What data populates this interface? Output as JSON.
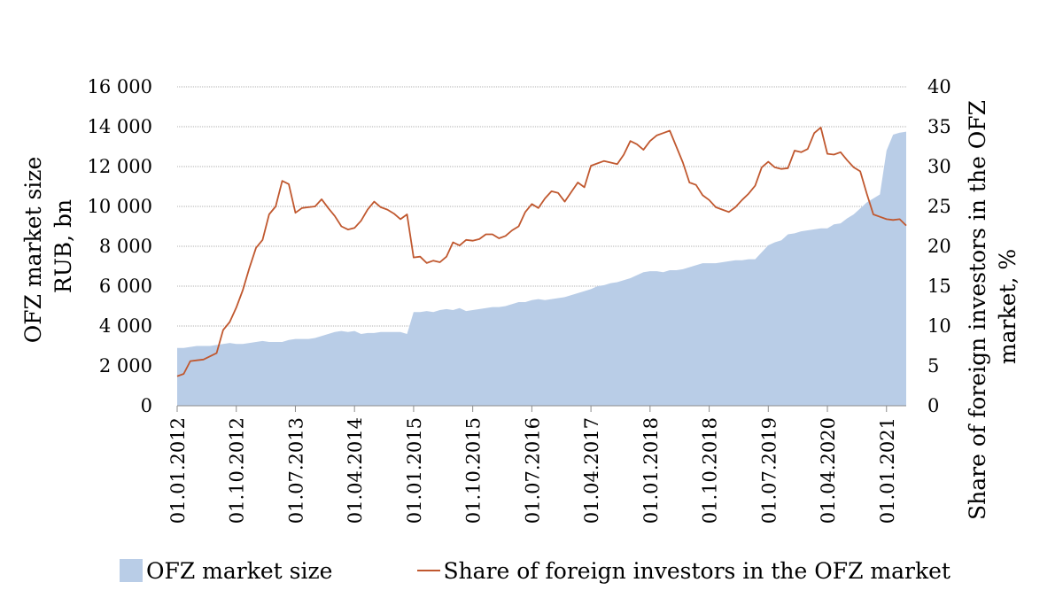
{
  "chart_data": {
    "type": "area+line",
    "x_ticks": [
      "01.01.2012",
      "01.10.2012",
      "01.07.2013",
      "01.04.2014",
      "01.01.2015",
      "01.10.2015",
      "01.07.2016",
      "01.04.2017",
      "01.01.2018",
      "01.10.2018",
      "01.07.2019",
      "01.04.2020",
      "01.01.2021"
    ],
    "y_left": {
      "label_lines": [
        "OFZ market size",
        "RUB, bn"
      ],
      "ticks": [
        "0",
        "2 000",
        "4 000",
        "6 000",
        "8 000",
        "10 000",
        "12 000",
        "14 000",
        "16 000"
      ],
      "min": 0,
      "max": 16000
    },
    "y_right": {
      "label_lines": [
        "Share of foreign investors in the OFZ",
        "market, %"
      ],
      "ticks": [
        "0",
        "5",
        "10",
        "15",
        "20",
        "25",
        "30",
        "35",
        "40"
      ],
      "min": 0,
      "max": 40
    },
    "x_range": [
      "2012-01",
      "2021-04"
    ],
    "grid": "horizontal",
    "legend_position": "bottom",
    "series": [
      {
        "name": "OFZ market size",
        "kind": "area",
        "axis": "left",
        "color": "#b9cde7",
        "points": [
          [
            "2012-01",
            2900
          ],
          [
            "2012-02",
            2900
          ],
          [
            "2012-03",
            2950
          ],
          [
            "2012-04",
            3000
          ],
          [
            "2012-05",
            3000
          ],
          [
            "2012-06",
            3000
          ],
          [
            "2012-07",
            3050
          ],
          [
            "2012-08",
            3100
          ],
          [
            "2012-09",
            3150
          ],
          [
            "2012-10",
            3100
          ],
          [
            "2012-11",
            3100
          ],
          [
            "2012-12",
            3150
          ],
          [
            "2013-01",
            3200
          ],
          [
            "2013-02",
            3250
          ],
          [
            "2013-03",
            3200
          ],
          [
            "2013-04",
            3200
          ],
          [
            "2013-05",
            3200
          ],
          [
            "2013-06",
            3300
          ],
          [
            "2013-07",
            3350
          ],
          [
            "2013-08",
            3350
          ],
          [
            "2013-09",
            3350
          ],
          [
            "2013-10",
            3400
          ],
          [
            "2013-11",
            3500
          ],
          [
            "2013-12",
            3600
          ],
          [
            "2014-01",
            3700
          ],
          [
            "2014-02",
            3750
          ],
          [
            "2014-03",
            3700
          ],
          [
            "2014-04",
            3750
          ],
          [
            "2014-05",
            3600
          ],
          [
            "2014-06",
            3650
          ],
          [
            "2014-07",
            3650
          ],
          [
            "2014-08",
            3700
          ],
          [
            "2014-09",
            3700
          ],
          [
            "2014-10",
            3700
          ],
          [
            "2014-11",
            3700
          ],
          [
            "2014-12",
            3600
          ],
          [
            "2015-01",
            4700
          ],
          [
            "2015-02",
            4700
          ],
          [
            "2015-03",
            4750
          ],
          [
            "2015-04",
            4700
          ],
          [
            "2015-05",
            4800
          ],
          [
            "2015-06",
            4850
          ],
          [
            "2015-07",
            4800
          ],
          [
            "2015-08",
            4900
          ],
          [
            "2015-09",
            4750
          ],
          [
            "2015-10",
            4800
          ],
          [
            "2015-11",
            4850
          ],
          [
            "2015-12",
            4900
          ],
          [
            "2016-01",
            4950
          ],
          [
            "2016-02",
            4950
          ],
          [
            "2016-03",
            5000
          ],
          [
            "2016-04",
            5100
          ],
          [
            "2016-05",
            5200
          ],
          [
            "2016-06",
            5200
          ],
          [
            "2016-07",
            5300
          ],
          [
            "2016-08",
            5350
          ],
          [
            "2016-09",
            5300
          ],
          [
            "2016-10",
            5350
          ],
          [
            "2016-11",
            5400
          ],
          [
            "2016-12",
            5450
          ],
          [
            "2017-01",
            5550
          ],
          [
            "2017-02",
            5650
          ],
          [
            "2017-03",
            5750
          ],
          [
            "2017-04",
            5850
          ],
          [
            "2017-05",
            6000
          ],
          [
            "2017-06",
            6050
          ],
          [
            "2017-07",
            6150
          ],
          [
            "2017-08",
            6200
          ],
          [
            "2017-09",
            6300
          ],
          [
            "2017-10",
            6400
          ],
          [
            "2017-11",
            6550
          ],
          [
            "2017-12",
            6700
          ],
          [
            "2018-01",
            6750
          ],
          [
            "2018-02",
            6750
          ],
          [
            "2018-03",
            6700
          ],
          [
            "2018-04",
            6800
          ],
          [
            "2018-05",
            6800
          ],
          [
            "2018-06",
            6850
          ],
          [
            "2018-07",
            6950
          ],
          [
            "2018-08",
            7050
          ],
          [
            "2018-09",
            7150
          ],
          [
            "2018-10",
            7150
          ],
          [
            "2018-11",
            7150
          ],
          [
            "2018-12",
            7200
          ],
          [
            "2019-01",
            7250
          ],
          [
            "2019-02",
            7300
          ],
          [
            "2019-03",
            7300
          ],
          [
            "2019-04",
            7350
          ],
          [
            "2019-05",
            7350
          ],
          [
            "2019-06",
            7700
          ],
          [
            "2019-07",
            8050
          ],
          [
            "2019-08",
            8200
          ],
          [
            "2019-09",
            8300
          ],
          [
            "2019-10",
            8600
          ],
          [
            "2019-11",
            8650
          ],
          [
            "2019-12",
            8750
          ],
          [
            "2020-01",
            8800
          ],
          [
            "2020-02",
            8850
          ],
          [
            "2020-03",
            8900
          ],
          [
            "2020-04",
            8900
          ],
          [
            "2020-05",
            9100
          ],
          [
            "2020-06",
            9150
          ],
          [
            "2020-07",
            9400
          ],
          [
            "2020-08",
            9600
          ],
          [
            "2020-09",
            9900
          ],
          [
            "2020-10",
            10200
          ],
          [
            "2020-11",
            10400
          ],
          [
            "2020-12",
            10600
          ],
          [
            "2021-01",
            12800
          ],
          [
            "2021-02",
            13600
          ],
          [
            "2021-03",
            13700
          ],
          [
            "2021-04",
            13750
          ]
        ]
      },
      {
        "name": "Share of foreign investors in the OFZ market",
        "kind": "line",
        "axis": "right",
        "color": "#c0582f",
        "points": [
          [
            "2012-01",
            3.7
          ],
          [
            "2012-02",
            4.0
          ],
          [
            "2012-03",
            5.6
          ],
          [
            "2012-04",
            5.7
          ],
          [
            "2012-05",
            5.8
          ],
          [
            "2012-06",
            6.2
          ],
          [
            "2012-07",
            6.6
          ],
          [
            "2012-08",
            9.5
          ],
          [
            "2012-09",
            10.5
          ],
          [
            "2012-10",
            12.3
          ],
          [
            "2012-11",
            14.5
          ],
          [
            "2012-12",
            17.3
          ],
          [
            "2013-01",
            19.8
          ],
          [
            "2013-02",
            20.8
          ],
          [
            "2013-03",
            24.0
          ],
          [
            "2013-04",
            25.0
          ],
          [
            "2013-05",
            28.2
          ],
          [
            "2013-06",
            27.8
          ],
          [
            "2013-07",
            24.2
          ],
          [
            "2013-08",
            24.8
          ],
          [
            "2013-09",
            24.9
          ],
          [
            "2013-10",
            25.0
          ],
          [
            "2013-11",
            25.9
          ],
          [
            "2013-12",
            24.8
          ],
          [
            "2014-01",
            23.8
          ],
          [
            "2014-02",
            22.5
          ],
          [
            "2014-03",
            22.1
          ],
          [
            "2014-04",
            22.3
          ],
          [
            "2014-05",
            23.2
          ],
          [
            "2014-06",
            24.6
          ],
          [
            "2014-07",
            25.6
          ],
          [
            "2014-08",
            24.9
          ],
          [
            "2014-09",
            24.6
          ],
          [
            "2014-10",
            24.1
          ],
          [
            "2014-11",
            23.4
          ],
          [
            "2014-12",
            24.0
          ],
          [
            "2015-01",
            18.6
          ],
          [
            "2015-02",
            18.7
          ],
          [
            "2015-03",
            17.9
          ],
          [
            "2015-04",
            18.2
          ],
          [
            "2015-05",
            18.0
          ],
          [
            "2015-06",
            18.7
          ],
          [
            "2015-07",
            20.5
          ],
          [
            "2015-08",
            20.1
          ],
          [
            "2015-09",
            20.8
          ],
          [
            "2015-10",
            20.7
          ],
          [
            "2015-11",
            20.9
          ],
          [
            "2015-12",
            21.5
          ],
          [
            "2016-01",
            21.5
          ],
          [
            "2016-02",
            21.0
          ],
          [
            "2016-03",
            21.3
          ],
          [
            "2016-04",
            22.0
          ],
          [
            "2016-05",
            22.5
          ],
          [
            "2016-06",
            24.3
          ],
          [
            "2016-07",
            25.3
          ],
          [
            "2016-08",
            24.8
          ],
          [
            "2016-09",
            26.0
          ],
          [
            "2016-10",
            26.9
          ],
          [
            "2016-11",
            26.7
          ],
          [
            "2016-12",
            25.6
          ],
          [
            "2017-01",
            26.8
          ],
          [
            "2017-02",
            28.0
          ],
          [
            "2017-03",
            27.4
          ],
          [
            "2017-04",
            30.1
          ],
          [
            "2017-05",
            30.4
          ],
          [
            "2017-06",
            30.7
          ],
          [
            "2017-07",
            30.5
          ],
          [
            "2017-08",
            30.3
          ],
          [
            "2017-09",
            31.5
          ],
          [
            "2017-10",
            33.2
          ],
          [
            "2017-11",
            32.8
          ],
          [
            "2017-12",
            32.1
          ],
          [
            "2018-01",
            33.2
          ],
          [
            "2018-02",
            33.9
          ],
          [
            "2018-03",
            34.2
          ],
          [
            "2018-04",
            34.5
          ],
          [
            "2018-05",
            32.5
          ],
          [
            "2018-06",
            30.5
          ],
          [
            "2018-07",
            28.0
          ],
          [
            "2018-08",
            27.7
          ],
          [
            "2018-09",
            26.4
          ],
          [
            "2018-10",
            25.8
          ],
          [
            "2018-11",
            24.9
          ],
          [
            "2018-12",
            24.6
          ],
          [
            "2019-01",
            24.3
          ],
          [
            "2019-02",
            24.9
          ],
          [
            "2019-03",
            25.8
          ],
          [
            "2019-04",
            26.6
          ],
          [
            "2019-05",
            27.6
          ],
          [
            "2019-06",
            29.9
          ],
          [
            "2019-07",
            30.6
          ],
          [
            "2019-08",
            29.9
          ],
          [
            "2019-09",
            29.7
          ],
          [
            "2019-10",
            29.8
          ],
          [
            "2019-11",
            32.0
          ],
          [
            "2019-12",
            31.8
          ],
          [
            "2020-01",
            32.2
          ],
          [
            "2020-02",
            34.2
          ],
          [
            "2020-03",
            34.9
          ],
          [
            "2020-04",
            31.6
          ],
          [
            "2020-05",
            31.5
          ],
          [
            "2020-06",
            31.8
          ],
          [
            "2020-07",
            30.8
          ],
          [
            "2020-08",
            29.9
          ],
          [
            "2020-09",
            29.4
          ],
          [
            "2020-10",
            26.6
          ],
          [
            "2020-11",
            24.0
          ],
          [
            "2020-12",
            23.7
          ],
          [
            "2021-01",
            23.4
          ],
          [
            "2021-02",
            23.3
          ],
          [
            "2021-03",
            23.4
          ],
          [
            "2021-04",
            22.6
          ]
        ]
      }
    ]
  }
}
